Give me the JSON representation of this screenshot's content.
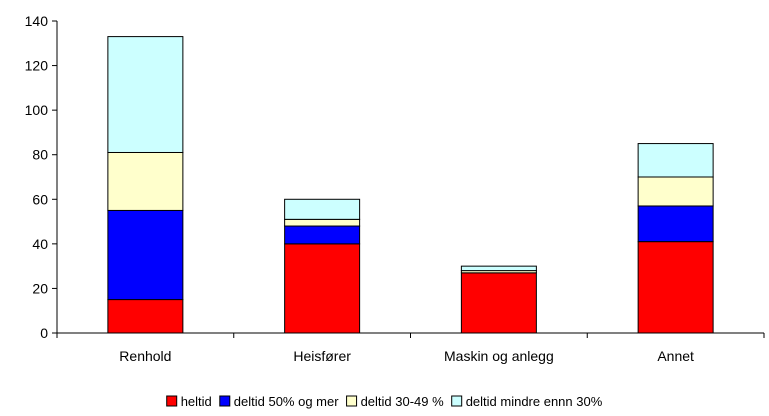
{
  "chart_data": {
    "type": "bar",
    "stacked": true,
    "categories": [
      "Renhold",
      "Heisfører",
      "Maskin og anlegg",
      "Annet"
    ],
    "series": [
      {
        "name": "heltid",
        "color": "#ff0000",
        "values": [
          15,
          40,
          27,
          41
        ]
      },
      {
        "name": "deltid 50% og mer",
        "color": "#0000ff",
        "values": [
          40,
          8,
          0,
          16
        ]
      },
      {
        "name": "deltid 30-49 %",
        "color": "#ffffcc",
        "values": [
          26,
          3,
          1,
          13
        ]
      },
      {
        "name": "deltid mindre ennn 30%",
        "color": "#ccffff",
        "values": [
          52,
          9,
          2,
          15
        ]
      }
    ],
    "ylim": [
      0,
      140
    ],
    "yticks": [
      0,
      20,
      40,
      60,
      80,
      100,
      120,
      140
    ],
    "grid": false,
    "legend_position": "bottom",
    "xlabel": "",
    "ylabel": ""
  }
}
